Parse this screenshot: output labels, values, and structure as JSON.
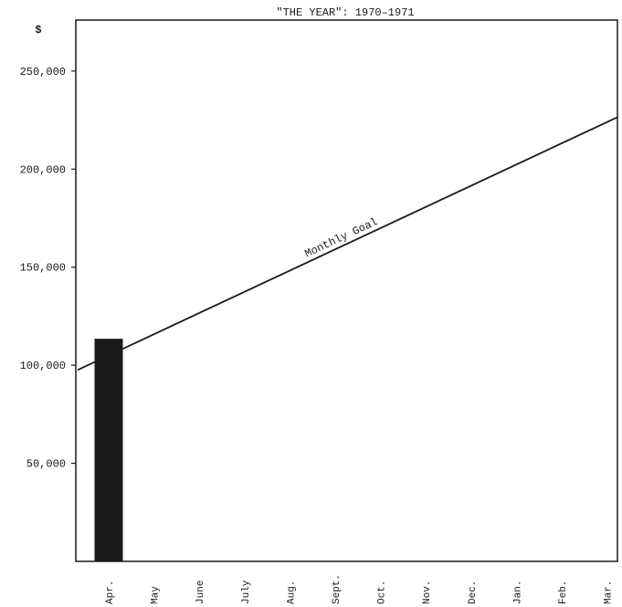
{
  "chart_data": {
    "type": "bar",
    "title": "\"THE YEAR\":  1970–1971",
    "ylabel": "$",
    "xlabel": "",
    "categories": [
      "Apr.",
      "May",
      "June",
      "July",
      "Aug.",
      "Sept.",
      "Oct.",
      "Nov.",
      "Dec.",
      "Jan.",
      "Feb.",
      "Mar."
    ],
    "ylim": [
      0,
      276000
    ],
    "yticks": [
      50000,
      100000,
      150000,
      200000,
      250000
    ],
    "ytick_labels": [
      "50,000",
      "100,000",
      "150,000",
      "200,000",
      "250,000"
    ],
    "grid": false,
    "series": [
      {
        "type": "bar",
        "values": [
          113500,
          null,
          null,
          null,
          null,
          null,
          null,
          null,
          null,
          null,
          null,
          null
        ],
        "color": "#1a1a1a"
      },
      {
        "name": "Monthly Goal",
        "type": "line",
        "start": {
          "x": "Apr.",
          "y": 105000
        },
        "end": {
          "x": "Mar.",
          "y": 224000
        },
        "color": "#1a1a1a"
      }
    ]
  }
}
